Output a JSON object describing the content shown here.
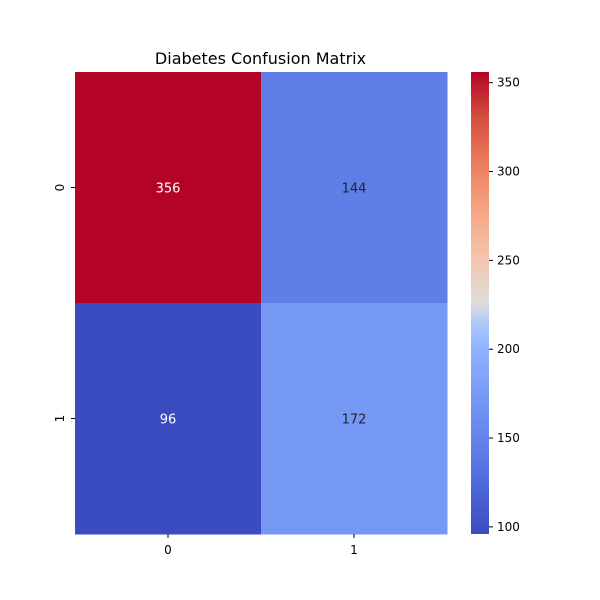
{
  "chart_data": {
    "type": "heatmap",
    "title": "Diabetes Confusion Matrix",
    "xlabel": "",
    "ylabel": "",
    "x_categories": [
      "0",
      "1"
    ],
    "y_categories": [
      "0",
      "1"
    ],
    "values": [
      [
        356,
        144
      ],
      [
        96,
        172
      ]
    ],
    "colormap": "coolwarm",
    "colorbar": {
      "min": 96,
      "max": 356,
      "ticks": [
        100,
        150,
        200,
        250,
        300,
        350
      ]
    },
    "colors": {
      "low": "#3b4cc0",
      "mid": "#dddddd",
      "high": "#b40426"
    },
    "grid": false,
    "legend": "colorbar-right"
  }
}
